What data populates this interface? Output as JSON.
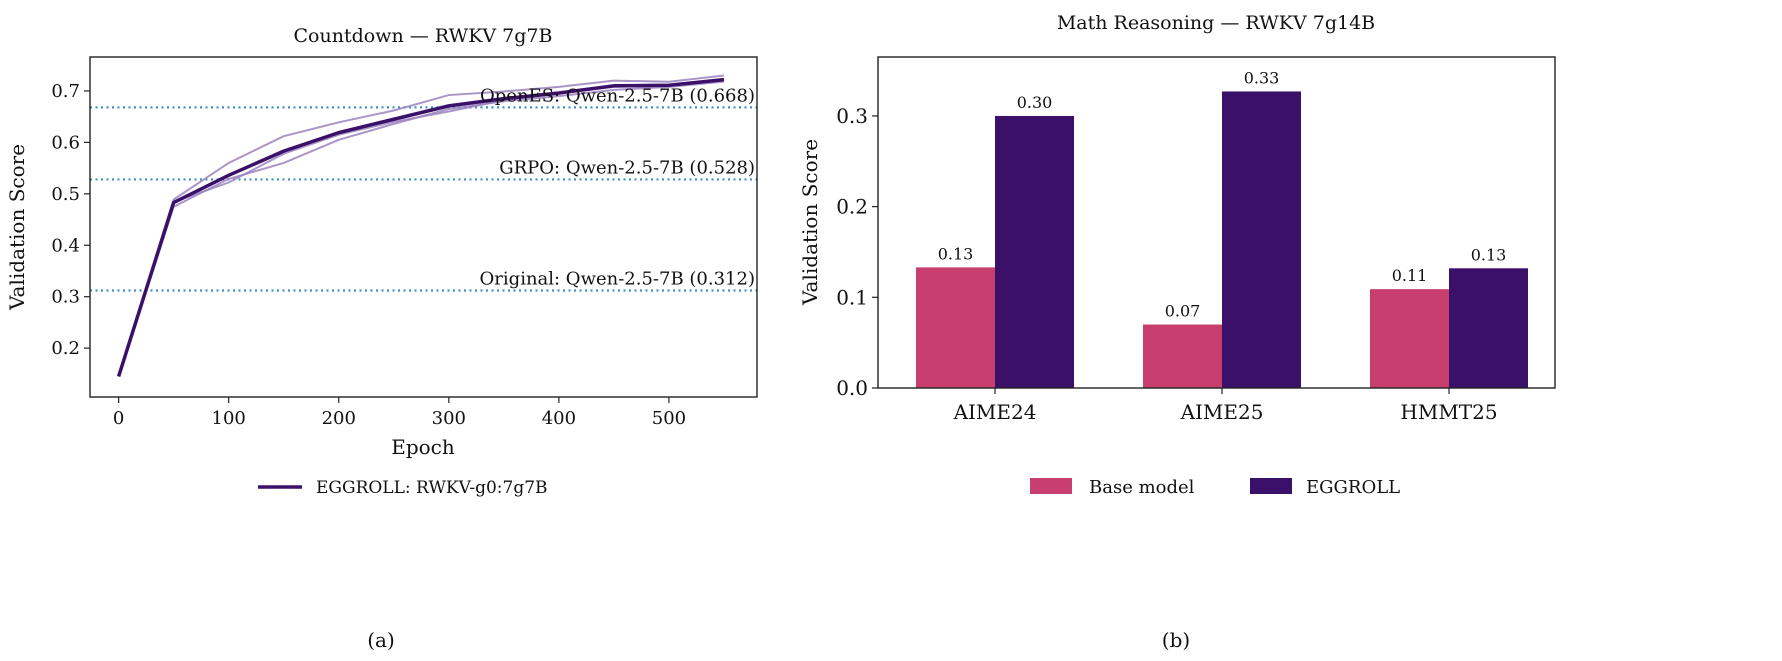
{
  "chart_data": [
    {
      "type": "line",
      "title": "Countdown — RWKV 7g7B",
      "xlabel": "Epoch",
      "ylabel": "Validation Score",
      "xlim": [
        -26,
        580
      ],
      "ylim": [
        0.105,
        0.766
      ],
      "xticks": [
        0,
        100,
        200,
        300,
        400,
        500
      ],
      "yticks": [
        0.2,
        0.3,
        0.4,
        0.5,
        0.6,
        0.7
      ],
      "grid": false,
      "legend_position": "bottom",
      "x": [
        0,
        50,
        100,
        150,
        200,
        250,
        300,
        350,
        400,
        450,
        500,
        550
      ],
      "series": [
        {
          "name": "EGGROLL: RWKV-g0:7g7B",
          "color": "#3b1069",
          "values": [
            0.145,
            0.483,
            0.536,
            0.583,
            0.619,
            0.645,
            0.671,
            0.685,
            0.696,
            0.71,
            0.711,
            0.722
          ]
        }
      ],
      "seed_runs": {
        "color": "#9b82c0",
        "runs": [
          [
            0.145,
            0.489,
            0.56,
            0.612,
            0.639,
            0.662,
            0.692,
            0.699,
            0.708,
            0.72,
            0.718,
            0.73
          ],
          [
            0.145,
            0.475,
            0.529,
            0.56,
            0.605,
            0.636,
            0.665,
            0.68,
            0.69,
            0.702,
            0.708,
            0.718
          ],
          [
            0.145,
            0.484,
            0.522,
            0.578,
            0.615,
            0.64,
            0.66,
            0.682,
            0.695,
            0.708,
            0.71,
            0.72
          ]
        ]
      },
      "reference_lines": {
        "color": "#3f8fc6",
        "items": [
          {
            "label": "OpenES: Qwen-2.5-7B (0.668)",
            "value": 0.668
          },
          {
            "label": "GRPO: Qwen-2.5-7B (0.528)",
            "value": 0.528
          },
          {
            "label": "Original: Qwen-2.5-7B (0.312)",
            "value": 0.312
          }
        ]
      },
      "caption": "(a)"
    },
    {
      "type": "bar",
      "title": "Math Reasoning — RWKV 7g14B",
      "xlabel": "",
      "ylabel": "Validation Score",
      "ylim": [
        0,
        0.365
      ],
      "yticks": [
        0.0,
        0.1,
        0.2,
        0.3
      ],
      "grid": false,
      "legend_position": "bottom",
      "categories": [
        "AIME24",
        "AIME25",
        "HMMT25"
      ],
      "series": [
        {
          "name": "Base model",
          "color": "#c83e6e",
          "values": [
            0.133,
            0.07,
            0.109
          ],
          "labels": [
            "0.13",
            "0.07",
            "0.11"
          ]
        },
        {
          "name": "EGGROLL",
          "color": "#3b1069",
          "values": [
            0.3,
            0.327,
            0.132
          ],
          "labels": [
            "0.30",
            "0.33",
            "0.13"
          ]
        }
      ],
      "caption": "(b)"
    }
  ]
}
